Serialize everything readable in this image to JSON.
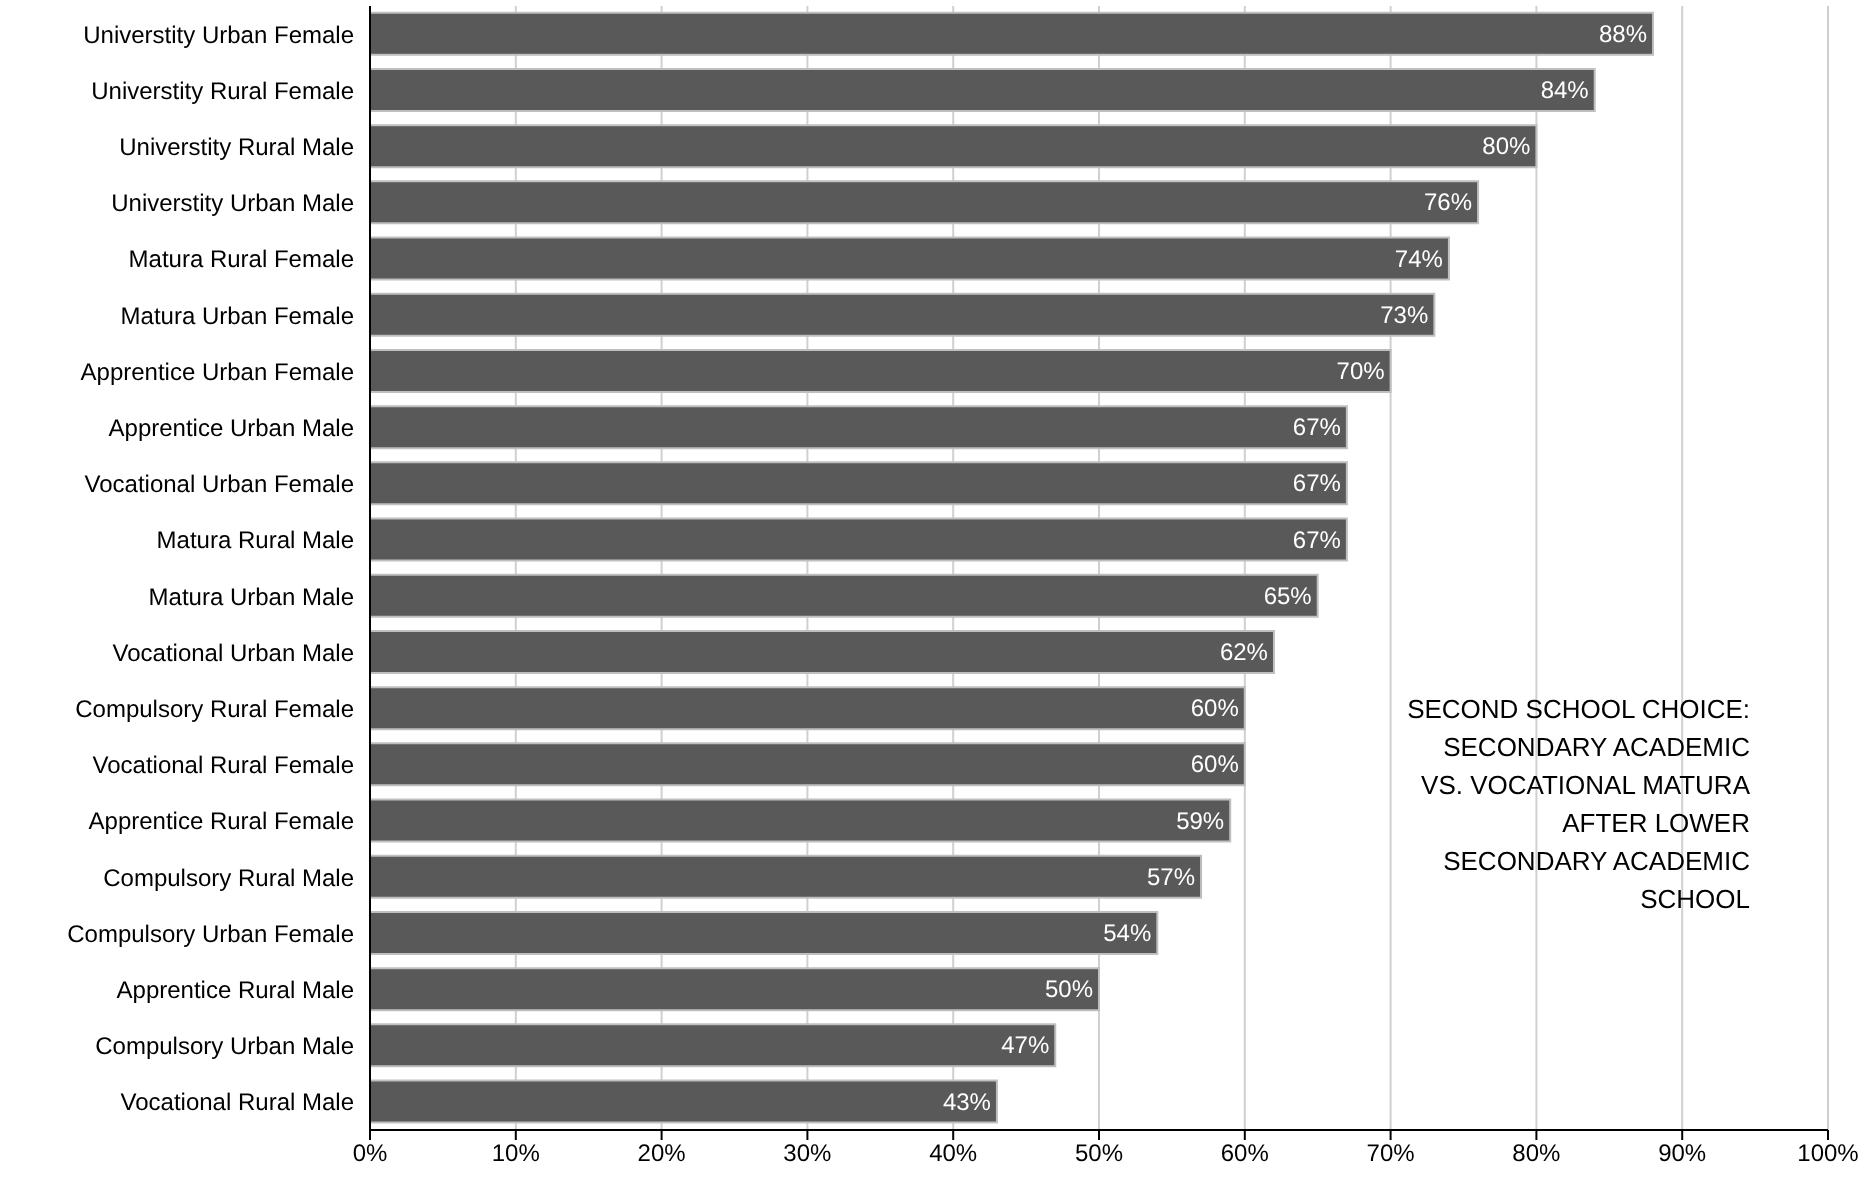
{
  "chart_data": {
    "type": "bar",
    "orientation": "horizontal",
    "title": "SECOND SCHOOL CHOICE:\nSECONDARY ACADEMIC\nVS. VOCATIONAL MATURA\nAFTER LOWER\nSECONDARY ACADEMIC\nSCHOOL",
    "categories": [
      "Universtity Urban Female",
      "Universtity Rural Female",
      "Universtity Rural Male",
      "Universtity Urban Male",
      "Matura Rural Female",
      "Matura Urban Female",
      "Apprentice Urban Female",
      "Apprentice Urban Male",
      "Vocational Urban Female",
      "Matura Rural Male",
      "Matura Urban Male",
      "Vocational Urban Male",
      "Compulsory Rural Female",
      "Vocational Rural Female",
      "Apprentice Rural Female",
      "Compulsory Rural Male",
      "Compulsory Urban Female",
      "Apprentice Rural Male",
      "Compulsory Urban Male",
      "Vocational Rural Male"
    ],
    "values": [
      88,
      84,
      80,
      76,
      74,
      73,
      70,
      67,
      67,
      67,
      65,
      62,
      60,
      60,
      59,
      57,
      54,
      50,
      47,
      43
    ],
    "value_labels": [
      "88%",
      "84%",
      "80%",
      "76%",
      "74%",
      "73%",
      "70%",
      "67%",
      "67%",
      "67%",
      "65%",
      "62%",
      "60%",
      "60%",
      "59%",
      "57%",
      "54%",
      "50%",
      "47%",
      "43%"
    ],
    "color": "#595959",
    "xlim": [
      0,
      100
    ],
    "xticks": [
      {
        "value": 0,
        "label": "0%"
      },
      {
        "value": 10,
        "label": "10%"
      },
      {
        "value": 20,
        "label": "20%"
      },
      {
        "value": 30,
        "label": "30%"
      },
      {
        "value": 40,
        "label": "40%"
      },
      {
        "value": 50,
        "label": "50%"
      },
      {
        "value": 60,
        "label": "60%"
      },
      {
        "value": 70,
        "label": "70%"
      },
      {
        "value": 80,
        "label": "80%"
      },
      {
        "value": 90,
        "label": "90%"
      },
      {
        "value": 100,
        "label": "100%"
      }
    ],
    "grid": "x"
  }
}
